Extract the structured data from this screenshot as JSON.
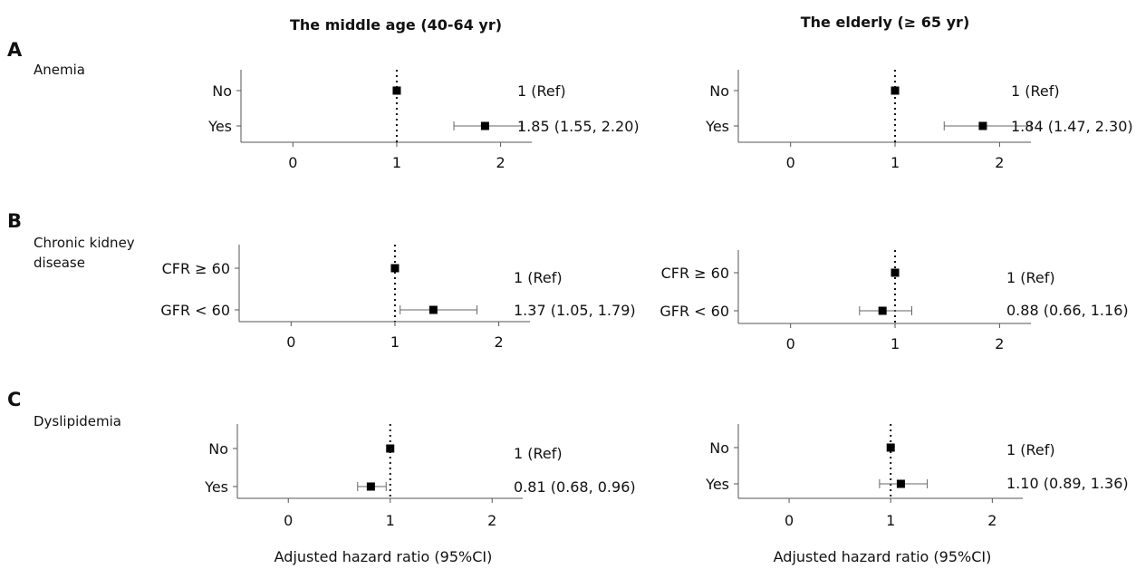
{
  "figure": {
    "col_titles": [
      "The middle age (40-64 yr)",
      "The elderly (≥ 65 yr)"
    ],
    "xlabel": "Adjusted hazard ratio (95%CI)"
  },
  "chart_data": [
    {
      "type": "forest",
      "panel": "A",
      "row_title": "Anemia",
      "column": "The middle age (40-64 yr)",
      "xlim": [
        -0.5,
        2.3
      ],
      "xticks": [
        0,
        1,
        2
      ],
      "reference_line": 1,
      "categories": [
        "No",
        "Yes"
      ],
      "estimates": [
        1,
        1.85
      ],
      "ci_low": [
        null,
        1.55
      ],
      "ci_high": [
        null,
        2.2
      ],
      "labels": [
        "1 (Ref)",
        "1.85 (1.55, 2.20)"
      ]
    },
    {
      "type": "forest",
      "panel": "A",
      "row_title": "Anemia",
      "column": "The elderly (≥ 65 yr)",
      "xlim": [
        -0.5,
        2.3
      ],
      "xticks": [
        0,
        1,
        2
      ],
      "reference_line": 1,
      "categories": [
        "No",
        "Yes"
      ],
      "estimates": [
        1,
        1.84
      ],
      "ci_low": [
        null,
        1.47
      ],
      "ci_high": [
        null,
        2.3
      ],
      "labels": [
        "1 (Ref)",
        "1.84 (1.47, 2.30)"
      ]
    },
    {
      "type": "forest",
      "panel": "B",
      "row_title": "Chronic kidney disease",
      "column": "The middle age (40-64 yr)",
      "xlim": [
        -0.5,
        2.3
      ],
      "xticks": [
        0,
        1,
        2
      ],
      "reference_line": 1,
      "categories": [
        "CFR ≥ 60",
        "GFR < 60"
      ],
      "estimates": [
        1,
        1.37
      ],
      "ci_low": [
        null,
        1.05
      ],
      "ci_high": [
        null,
        1.79
      ],
      "labels": [
        "1 (Ref)",
        "1.37 (1.05, 1.79)"
      ]
    },
    {
      "type": "forest",
      "panel": "B",
      "row_title": "Chronic kidney disease",
      "column": "The elderly (≥ 65 yr)",
      "xlim": [
        -0.5,
        2.3
      ],
      "xticks": [
        0,
        1,
        2
      ],
      "reference_line": 1,
      "categories": [
        "CFR ≥ 60",
        "GFR < 60"
      ],
      "estimates": [
        1,
        0.88
      ],
      "ci_low": [
        null,
        0.66
      ],
      "ci_high": [
        null,
        1.16
      ],
      "labels": [
        "1 (Ref)",
        "0.88 (0.66, 1.16)"
      ]
    },
    {
      "type": "forest",
      "panel": "C",
      "row_title": "Dyslipidemia",
      "column": "The middle age (40-64 yr)",
      "xlim": [
        -0.5,
        2.3
      ],
      "xticks": [
        0,
        1,
        2
      ],
      "reference_line": 1,
      "categories": [
        "No",
        "Yes"
      ],
      "estimates": [
        1,
        0.81
      ],
      "ci_low": [
        null,
        0.68
      ],
      "ci_high": [
        null,
        0.96
      ],
      "labels": [
        "1 (Ref)",
        "0.81 (0.68, 0.96)"
      ]
    },
    {
      "type": "forest",
      "panel": "C",
      "row_title": "Dyslipidemia",
      "column": "The elderly (≥ 65 yr)",
      "xlim": [
        -0.5,
        2.3
      ],
      "xticks": [
        0,
        1,
        2
      ],
      "reference_line": 1,
      "categories": [
        "No",
        "Yes"
      ],
      "estimates": [
        1,
        1.1
      ],
      "ci_low": [
        null,
        0.89
      ],
      "ci_high": [
        null,
        1.36
      ],
      "labels": [
        "1 (Ref)",
        "1.10 (0.89, 1.36)"
      ]
    }
  ]
}
